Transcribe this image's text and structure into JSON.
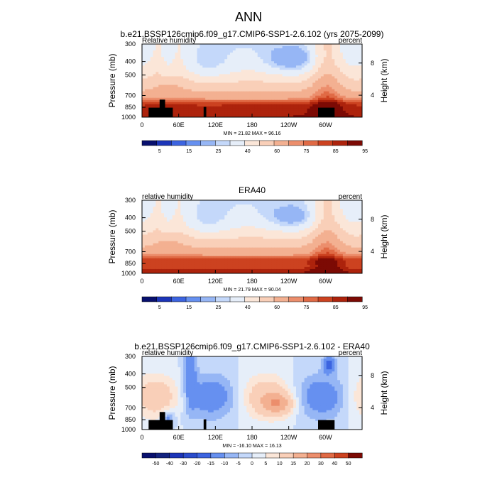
{
  "figure": {
    "title": "ANN"
  },
  "chart_data": [
    {
      "type": "heatmap",
      "title": "b.e21.BSSP126cmip6.f09_g17.CMIP6-SSP1-2.6.102 (yrs 2075-2099)",
      "left_label": "Relative humidity",
      "right_label": "percent",
      "ylabel": "Pressure (mb)",
      "ylabel_right": "Height (km)",
      "x_ticks": [
        "0",
        "60E",
        "120E",
        "180",
        "120W",
        "60W"
      ],
      "y_ticks": [
        "300",
        "400",
        "500",
        "700",
        "850",
        "1000"
      ],
      "y_right_ticks": [
        "8",
        "4"
      ],
      "stats": "MIN = 21.82  MAX = 96.16",
      "colorbar": {
        "labels": [
          "5",
          "15",
          "25",
          "40",
          "60",
          "75",
          "85",
          "95"
        ],
        "colors": [
          "#08106e",
          "#1c35b8",
          "#3c64e0",
          "#6690f0",
          "#96b6f5",
          "#c4d8fa",
          "#e6eef9",
          "#fbe6d8",
          "#f9cfb8",
          "#f3b091",
          "#ec8e6c",
          "#e06a45",
          "#cc4220",
          "#ad230c",
          "#7c0a04"
        ]
      },
      "field": {
        "kind": "model",
        "noise_seed": 1
      },
      "terrain": true
    },
    {
      "type": "heatmap",
      "title": "ERA40",
      "left_label": "relative humidity",
      "right_label": "percent",
      "ylabel": "Pressure (mb)",
      "ylabel_right": "Height (km)",
      "x_ticks": [
        "0",
        "60E",
        "120E",
        "180",
        "120W",
        "60W"
      ],
      "y_ticks": [
        "300",
        "400",
        "500",
        "700",
        "850",
        "1000"
      ],
      "y_right_ticks": [
        "8",
        "4"
      ],
      "stats": "MIN = 21.79  MAX = 90.04",
      "colorbar": {
        "labels": [
          "5",
          "15",
          "25",
          "40",
          "60",
          "75",
          "85",
          "95"
        ],
        "colors": [
          "#08106e",
          "#1c35b8",
          "#3c64e0",
          "#6690f0",
          "#96b6f5",
          "#c4d8fa",
          "#e6eef9",
          "#fbe6d8",
          "#f9cfb8",
          "#f3b091",
          "#ec8e6c",
          "#e06a45",
          "#cc4220",
          "#ad230c",
          "#7c0a04"
        ]
      },
      "field": {
        "kind": "obs",
        "noise_seed": 2
      },
      "terrain": false
    },
    {
      "type": "heatmap",
      "title": "b.e21.BSSP126cmip6.f09_g17.CMIP6-SSP1-2.6.102 - ERA40",
      "left_label": "relative humidity",
      "right_label": "percent",
      "ylabel": "Pressure (mb)",
      "ylabel_right": "Height (km)",
      "x_ticks": [
        "0",
        "60E",
        "120E",
        "180",
        "120W",
        "60W"
      ],
      "y_ticks": [
        "300",
        "400",
        "500",
        "700",
        "850",
        "1000"
      ],
      "y_right_ticks": [
        "8",
        "4"
      ],
      "stats": "MIN = -16.10  MAX = 16.13",
      "colorbar": {
        "labels": [
          "-50",
          "-40",
          "-30",
          "-20",
          "-15",
          "-10",
          "-5",
          "0",
          "5",
          "10",
          "15",
          "20",
          "30",
          "40",
          "50"
        ],
        "colors": [
          "#08106e",
          "#13237f",
          "#1c35b8",
          "#2a4ccc",
          "#3c64e0",
          "#6690f0",
          "#96b6f5",
          "#c4d8fa",
          "#e6eef9",
          "#fbe6d8",
          "#f9cfb8",
          "#f3b091",
          "#ec8e6c",
          "#e06a45",
          "#cc4220",
          "#7c0a04"
        ]
      },
      "field": {
        "kind": "diff",
        "noise_seed": 3
      },
      "terrain": true
    }
  ]
}
